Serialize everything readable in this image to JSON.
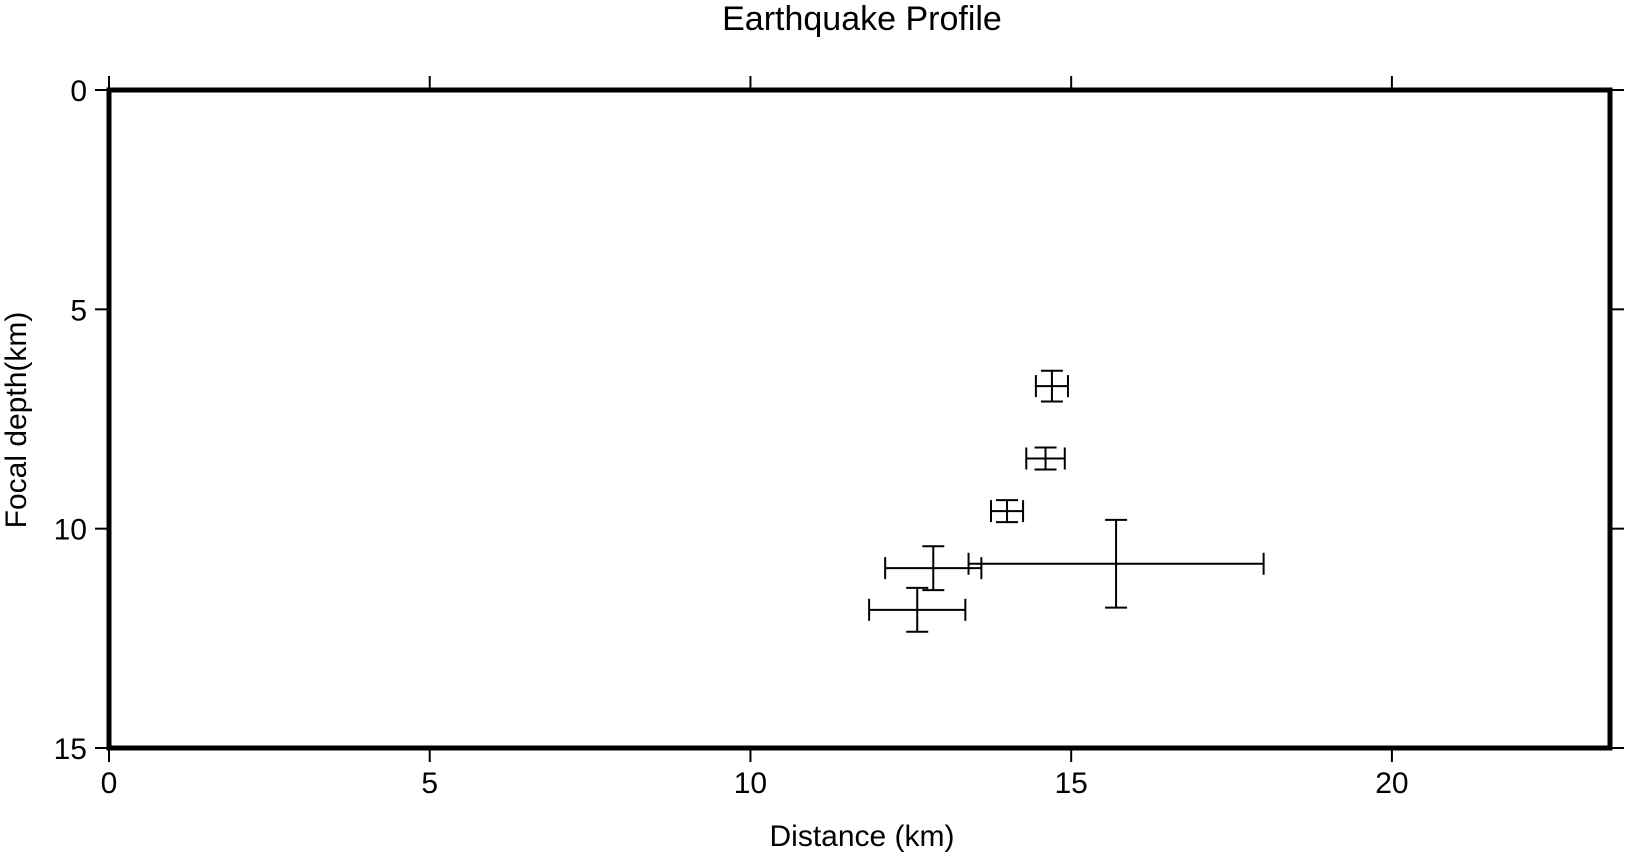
{
  "chart_data": {
    "type": "scatter",
    "title": "Earthquake Profile",
    "xlabel": "Distance (km)",
    "ylabel": "Focal depth(km)",
    "xlim": [
      0,
      23.4
    ],
    "ylim": [
      0,
      15
    ],
    "y_inverted": true,
    "x_ticks": [
      0,
      5,
      10,
      15,
      20
    ],
    "x_tick_labels": [
      "0",
      "5",
      "10",
      "15",
      "20"
    ],
    "y_ticks": [
      0,
      5,
      10,
      15
    ],
    "y_tick_labels": [
      "0",
      "5",
      "10",
      "15"
    ],
    "grid": false,
    "marker": "error-bar-cross",
    "points": [
      {
        "x": 14.7,
        "y": 6.75,
        "xerr": 0.25,
        "yerr": 0.35
      },
      {
        "x": 14.6,
        "y": 8.4,
        "xerr": 0.3,
        "yerr": 0.25
      },
      {
        "x": 14.0,
        "y": 9.6,
        "xerr": 0.25,
        "yerr": 0.25
      },
      {
        "x": 12.85,
        "y": 10.9,
        "xerr": 0.75,
        "yerr": 0.5
      },
      {
        "x": 15.7,
        "y": 10.8,
        "xerr": 2.3,
        "yerr": 1.0
      },
      {
        "x": 12.6,
        "y": 11.85,
        "xerr": 0.75,
        "yerr": 0.5
      }
    ],
    "colors": {
      "axis": "#000000",
      "marker": "#000000",
      "background": "#ffffff"
    }
  }
}
